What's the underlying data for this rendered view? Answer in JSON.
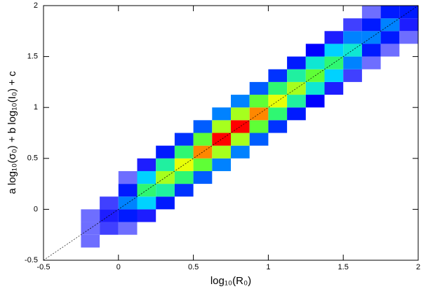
{
  "chart_data": {
    "type": "hist2d",
    "xlabel": "log₁₀(R₀)",
    "ylabel": "a log₁₀(σ₀) + b log₁₀(I₀) + c",
    "xlim": [
      -0.5,
      2
    ],
    "ylim": [
      -0.5,
      2
    ],
    "xticks": [
      -0.5,
      0,
      0.5,
      1,
      1.5,
      2
    ],
    "yticks": [
      -0.5,
      0,
      0.5,
      1,
      1.5,
      2
    ],
    "xbins": [
      -0.5,
      -0.375,
      -0.25,
      -0.125,
      0,
      0.125,
      0.25,
      0.375,
      0.5,
      0.625,
      0.75,
      0.875,
      1,
      1.125,
      1.25,
      1.375,
      1.5,
      1.625,
      1.75,
      1.875,
      2
    ],
    "ybins": [
      -0.5,
      -0.375,
      -0.25,
      -0.125,
      0,
      0.125,
      0.25,
      0.375,
      0.5,
      0.625,
      0.75,
      0.875,
      1,
      1.125,
      1.25,
      1.375,
      1.5,
      1.625,
      1.75,
      1.875,
      2
    ],
    "counts": [
      [
        0,
        0,
        0,
        0,
        0,
        0,
        0,
        0,
        0,
        0,
        0,
        0,
        0,
        0,
        0,
        0,
        0,
        0,
        0,
        0
      ],
      [
        0,
        0,
        0.1,
        0,
        0,
        0,
        0,
        0,
        0,
        0,
        0,
        0,
        0,
        0,
        0,
        0,
        0,
        0,
        0,
        0
      ],
      [
        0,
        0,
        0.1,
        0.2,
        0.1,
        0,
        0,
        0,
        0,
        0,
        0,
        0,
        0,
        0,
        0,
        0,
        0,
        0,
        0,
        0
      ],
      [
        0,
        0,
        0.1,
        0.3,
        0.5,
        0.3,
        0,
        0,
        0,
        0,
        0,
        0,
        0,
        0,
        0,
        0,
        0,
        0,
        0,
        0
      ],
      [
        0,
        0,
        0,
        0.2,
        1,
        1.5,
        0.5,
        0,
        0,
        0,
        0,
        0,
        0,
        0,
        0,
        0,
        0,
        0,
        0,
        0
      ],
      [
        0,
        0,
        0,
        0,
        0.5,
        3,
        2.5,
        0.6,
        0,
        0,
        0,
        0,
        0,
        0,
        0,
        0,
        0,
        0,
        0,
        0
      ],
      [
        0,
        0,
        0,
        0,
        0.1,
        1.5,
        5,
        3,
        0.8,
        0,
        0,
        0,
        0,
        0,
        0,
        0,
        0,
        0,
        0,
        0
      ],
      [
        0,
        0,
        0,
        0,
        0,
        0.3,
        2.5,
        6,
        4,
        1,
        0,
        0,
        0,
        0,
        0,
        0,
        0,
        0,
        0,
        0
      ],
      [
        0,
        0,
        0,
        0,
        0,
        0,
        0.5,
        3,
        8,
        5,
        1,
        0,
        0,
        0,
        0,
        0,
        0,
        0,
        0,
        0
      ],
      [
        0,
        0,
        0,
        0,
        0,
        0,
        0,
        0.6,
        4,
        10,
        5,
        0.8,
        0,
        0,
        0,
        0,
        0,
        0,
        0,
        0
      ],
      [
        0,
        0,
        0,
        0,
        0,
        0,
        0,
        0,
        0.8,
        5,
        10,
        4,
        0.6,
        0,
        0,
        0,
        0,
        0,
        0,
        0
      ],
      [
        0,
        0,
        0,
        0,
        0,
        0,
        0,
        0,
        0,
        1,
        5,
        8,
        3,
        0.5,
        0,
        0,
        0,
        0,
        0,
        0
      ],
      [
        0,
        0,
        0,
        0,
        0,
        0,
        0,
        0,
        0,
        0,
        1,
        4,
        6,
        2.5,
        0.4,
        0,
        0,
        0,
        0,
        0
      ],
      [
        0,
        0,
        0,
        0,
        0,
        0,
        0,
        0,
        0,
        0,
        0,
        0.8,
        3,
        5,
        2,
        0.3,
        0,
        0,
        0,
        0
      ],
      [
        0,
        0,
        0,
        0,
        0,
        0,
        0,
        0,
        0,
        0,
        0,
        0,
        0.6,
        2.5,
        4,
        1.5,
        0.2,
        0,
        0,
        0
      ],
      [
        0,
        0,
        0,
        0,
        0,
        0,
        0,
        0,
        0,
        0,
        0,
        0,
        0,
        0.5,
        2,
        3,
        1,
        0.1,
        0,
        0
      ],
      [
        0,
        0,
        0,
        0,
        0,
        0,
        0,
        0,
        0,
        0,
        0,
        0,
        0,
        0,
        0.4,
        1.5,
        2,
        0.5,
        0.1,
        0
      ],
      [
        0,
        0,
        0,
        0,
        0,
        0,
        0,
        0,
        0,
        0,
        0,
        0,
        0,
        0,
        0,
        0.3,
        1,
        1,
        0.5,
        0.1
      ],
      [
        0,
        0,
        0,
        0,
        0,
        0,
        0,
        0,
        0,
        0,
        0,
        0,
        0,
        0,
        0,
        0,
        0.2,
        0.5,
        1,
        0.3
      ],
      [
        0,
        0,
        0,
        0,
        0,
        0,
        0,
        0,
        0,
        0,
        0,
        0,
        0,
        0,
        0,
        0,
        0,
        0.1,
        0.5,
        0.5
      ]
    ],
    "clim": [
      0,
      10
    ],
    "colormap": [
      "#dcdcff",
      "#0000ff",
      "#00e0ff",
      "#40ff40",
      "#ffff00",
      "#ff0000"
    ],
    "reference_line": {
      "x": [
        -0.5,
        2
      ],
      "y": [
        -0.5,
        2
      ],
      "color": "#000000"
    }
  }
}
